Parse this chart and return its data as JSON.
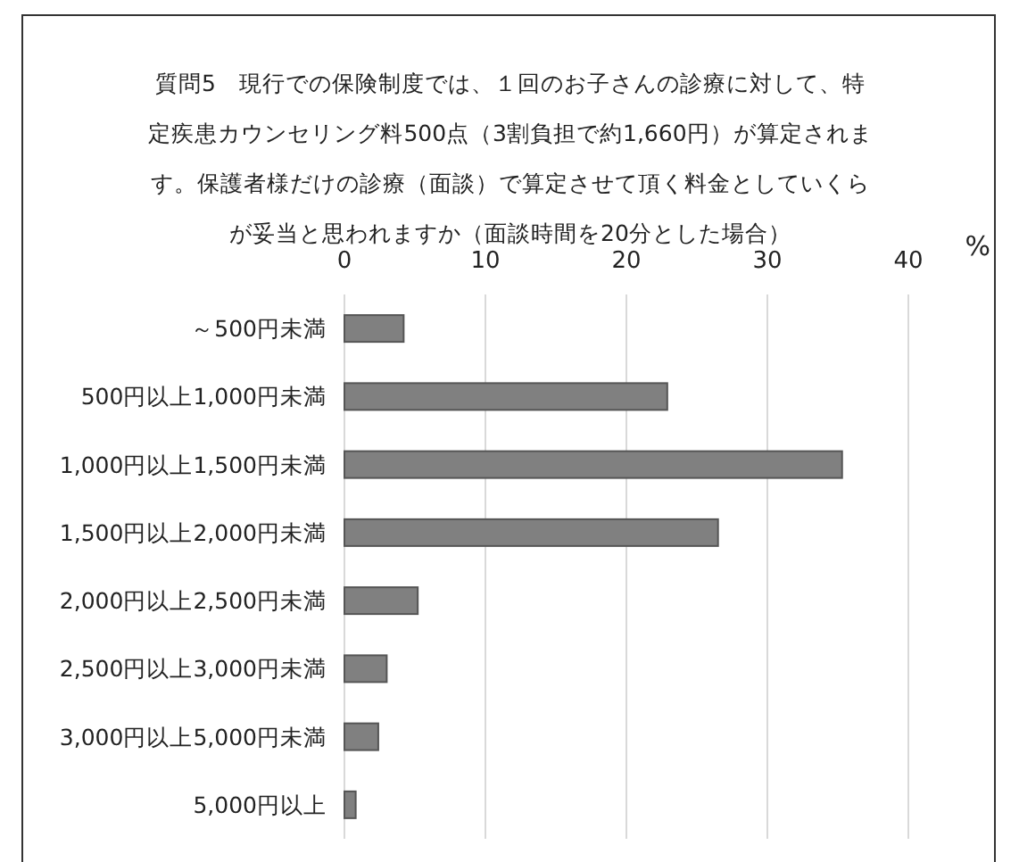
{
  "chart_data": {
    "type": "bar",
    "orientation": "horizontal",
    "title": "質問5　現行での保険制度では、１回のお子さんの診療に対して、特定疾患カウンセリング料500点（3割負担で約1,660円）が算定されます。保護者様だけの診療（面談）で算定させて頂く料金としていくらが妥当と思われますか（面談時間を20分とした場合）",
    "xlabel": "%",
    "categories": [
      "～500円未満",
      "500円以上1,000円未満",
      "1,000円以上1,500円未満",
      "1,500円以上2,000円未満",
      "2,000円以上2,500円未満",
      "2,500円以上3,000円未満",
      "3,000円以上5,000円未満",
      "5,000円以上"
    ],
    "values": [
      4.2,
      22.9,
      35.3,
      26.5,
      5.2,
      3.0,
      2.4,
      0.8
    ],
    "color": "#808080",
    "xlim": [
      0,
      40
    ],
    "xticks": [
      0,
      10,
      20,
      30,
      40
    ],
    "grid": "x"
  }
}
